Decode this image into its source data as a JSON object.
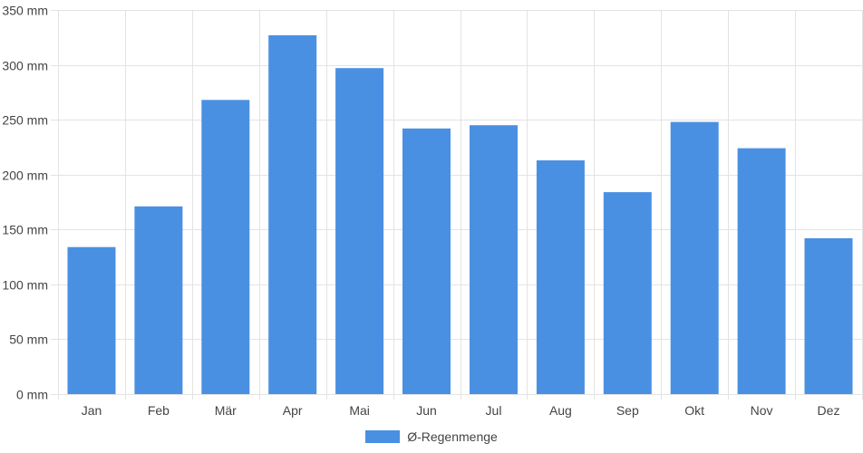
{
  "chart_data": {
    "type": "bar",
    "categories": [
      "Jan",
      "Feb",
      "Mär",
      "Apr",
      "Mai",
      "Jun",
      "Jul",
      "Aug",
      "Sep",
      "Okt",
      "Nov",
      "Dez"
    ],
    "series": [
      {
        "name": "Ø-Regenmenge",
        "values": [
          134,
          171,
          268,
          327,
          297,
          242,
          245,
          213,
          184,
          248,
          224,
          142
        ]
      }
    ],
    "ylim": [
      0,
      350
    ],
    "yticks": [
      "0 mm",
      "50 mm",
      "100 mm",
      "150 mm",
      "200 mm",
      "250 mm",
      "300 mm",
      "350 mm"
    ],
    "ytick_values": [
      0,
      50,
      100,
      150,
      200,
      250,
      300,
      350
    ],
    "unit": "mm",
    "grid": true,
    "legend_position": "bottom",
    "colors": {
      "bar": "#4a90e2",
      "grid": "#e3e3e3",
      "text": "#444444"
    }
  }
}
